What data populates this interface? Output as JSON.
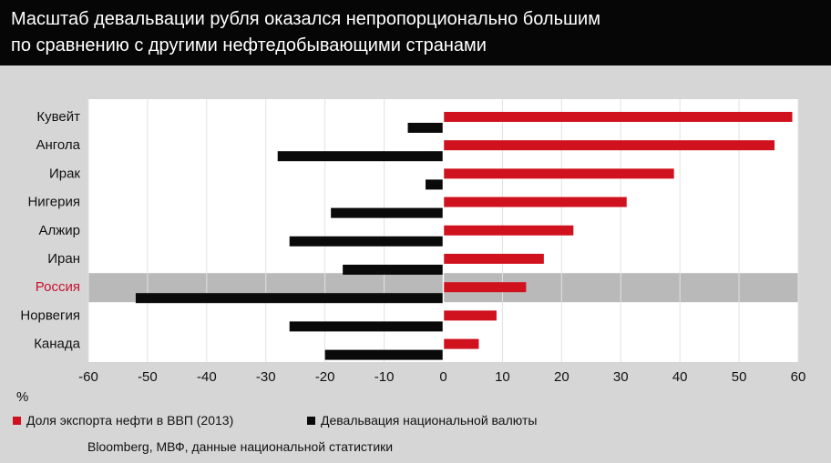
{
  "header": {
    "title_line1": "Масштаб девальвации рубля оказался непропорционально большим",
    "title_line2": "по сравнению с другими нефтедобывающими странами"
  },
  "chart_data": {
    "type": "bar",
    "orientation": "horizontal",
    "categories": [
      "Кувейт",
      "Ангола",
      "Ирак",
      "Нигерия",
      "Алжир",
      "Иран",
      "Россия",
      "Норвегия",
      "Канада"
    ],
    "highlighted_category": "Россия",
    "series": [
      {
        "name": "Доля экспорта нефти в ВВП (2013)",
        "color": "#d0121f",
        "values": [
          59,
          56,
          39,
          31,
          22,
          17,
          14,
          9,
          6
        ]
      },
      {
        "name": "Девальвация национальной валюты",
        "color": "#0a0a0a",
        "values": [
          -6,
          -28,
          -3,
          -19,
          -26,
          -17,
          -52,
          -26,
          -20
        ]
      }
    ],
    "xlim": [
      -60,
      60
    ],
    "xticks": [
      -60,
      -50,
      -40,
      -30,
      -20,
      -10,
      0,
      10,
      20,
      30,
      40,
      50,
      60
    ],
    "xlabel": "%",
    "grid": true,
    "highlight_color": "#b9b9b9",
    "label_color": "#111111",
    "highlight_label_color": "#c8102e"
  },
  "axis": {
    "unit": "%"
  },
  "source": "Bloomberg, МВФ, данные национальной статистики"
}
